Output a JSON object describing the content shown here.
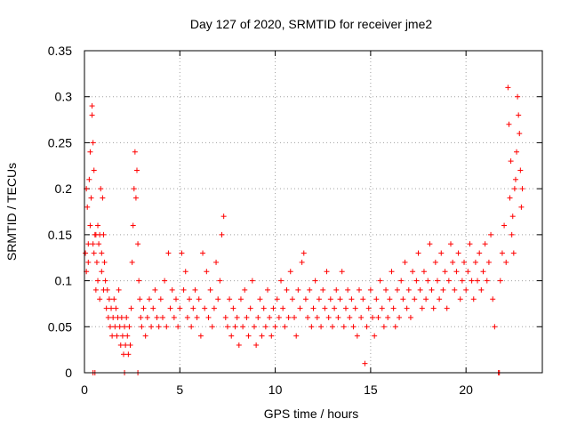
{
  "chart_data": {
    "type": "scatter",
    "title": "Day 127 of 2020, SRMTID for receiver jme2",
    "xlabel": "GPS time / hours",
    "ylabel": "SRMTID / TECUs",
    "xlim": [
      0,
      24
    ],
    "ylim": [
      0,
      0.35
    ],
    "x_ticks": [
      0,
      5,
      10,
      15,
      20
    ],
    "x_tick_labels": [
      "0",
      "5",
      "10",
      "15",
      "20"
    ],
    "y_ticks": [
      0,
      0.05,
      0.1,
      0.15,
      0.2,
      0.25,
      0.3,
      0.35
    ],
    "y_tick_labels": [
      "0",
      "0.05",
      "0.1",
      "0.15",
      "0.2",
      "0.25",
      "0.3",
      "0.35"
    ],
    "grid": true,
    "marker": "+",
    "series": [
      {
        "name": "SRMTID",
        "color": "#ff0000",
        "points": [
          [
            0.05,
            0.13
          ],
          [
            0.1,
            0.2
          ],
          [
            0.1,
            0.11
          ],
          [
            0.15,
            0.18
          ],
          [
            0.2,
            0.14
          ],
          [
            0.2,
            0.12
          ],
          [
            0.25,
            0.21
          ],
          [
            0.3,
            0.16
          ],
          [
            0.3,
            0.24
          ],
          [
            0.35,
            0.19
          ],
          [
            0.4,
            0.28
          ],
          [
            0.4,
            0.29
          ],
          [
            0.45,
            0.25
          ],
          [
            0.45,
            0.14
          ],
          [
            0.5,
            0.22
          ],
          [
            0.5,
            0.13
          ],
          [
            0.55,
            0.15
          ],
          [
            0.6,
            0.15
          ],
          [
            0.6,
            0.09
          ],
          [
            0.65,
            0.12
          ],
          [
            0.7,
            0.16
          ],
          [
            0.7,
            0.1
          ],
          [
            0.75,
            0.14
          ],
          [
            0.8,
            0.15
          ],
          [
            0.8,
            0.08
          ],
          [
            0.85,
            0.2
          ],
          [
            0.9,
            0.13
          ],
          [
            0.9,
            0.11
          ],
          [
            0.95,
            0.19
          ],
          [
            1.0,
            0.15
          ],
          [
            1.0,
            0.09
          ],
          [
            1.05,
            0.12
          ],
          [
            1.1,
            0.1
          ],
          [
            1.15,
            0.07
          ],
          [
            1.2,
            0.09
          ],
          [
            1.25,
            0.06
          ],
          [
            1.3,
            0.08
          ],
          [
            1.35,
            0.05
          ],
          [
            1.4,
            0.07
          ],
          [
            1.45,
            0.04
          ],
          [
            1.5,
            0.06
          ],
          [
            1.55,
            0.08
          ],
          [
            1.6,
            0.05
          ],
          [
            1.65,
            0.07
          ],
          [
            1.7,
            0.04
          ],
          [
            1.75,
            0.06
          ],
          [
            1.8,
            0.09
          ],
          [
            1.85,
            0.05
          ],
          [
            1.9,
            0.03
          ],
          [
            1.95,
            0.06
          ],
          [
            2.0,
            0.04
          ],
          [
            2.05,
            0.02
          ],
          [
            2.1,
            0.05
          ],
          [
            2.15,
            0.03
          ],
          [
            2.2,
            0.06
          ],
          [
            2.25,
            0.04
          ],
          [
            2.3,
            0.02
          ],
          [
            2.35,
            0.05
          ],
          [
            2.4,
            0.03
          ],
          [
            2.45,
            0.07
          ],
          [
            2.5,
            0.12
          ],
          [
            2.55,
            0.16
          ],
          [
            2.6,
            0.2
          ],
          [
            2.65,
            0.24
          ],
          [
            2.7,
            0.19
          ],
          [
            2.75,
            0.22
          ],
          [
            2.8,
            0.14
          ],
          [
            2.85,
            0.1
          ],
          [
            2.9,
            0.08
          ],
          [
            2.95,
            0.06
          ],
          [
            3.0,
            0.05
          ],
          [
            3.1,
            0.07
          ],
          [
            3.2,
            0.04
          ],
          [
            3.3,
            0.06
          ],
          [
            3.4,
            0.08
          ],
          [
            3.5,
            0.05
          ],
          [
            3.6,
            0.07
          ],
          [
            3.7,
            0.09
          ],
          [
            3.8,
            0.06
          ],
          [
            3.9,
            0.05
          ],
          [
            4.0,
            0.08
          ],
          [
            4.1,
            0.06
          ],
          [
            4.2,
            0.1
          ],
          [
            4.3,
            0.05
          ],
          [
            4.4,
            0.13
          ],
          [
            4.5,
            0.07
          ],
          [
            4.6,
            0.09
          ],
          [
            4.7,
            0.06
          ],
          [
            4.8,
            0.08
          ],
          [
            4.9,
            0.05
          ],
          [
            5.0,
            0.07
          ],
          [
            5.1,
            0.13
          ],
          [
            5.2,
            0.09
          ],
          [
            5.3,
            0.11
          ],
          [
            5.4,
            0.06
          ],
          [
            5.5,
            0.08
          ],
          [
            5.6,
            0.05
          ],
          [
            5.7,
            0.07
          ],
          [
            5.8,
            0.09
          ],
          [
            5.9,
            0.06
          ],
          [
            6.0,
            0.08
          ],
          [
            6.1,
            0.04
          ],
          [
            6.2,
            0.13
          ],
          [
            6.3,
            0.07
          ],
          [
            6.4,
            0.11
          ],
          [
            6.5,
            0.06
          ],
          [
            6.6,
            0.09
          ],
          [
            6.7,
            0.05
          ],
          [
            6.8,
            0.07
          ],
          [
            6.9,
            0.12
          ],
          [
            7.0,
            0.08
          ],
          [
            7.1,
            0.1
          ],
          [
            7.2,
            0.15
          ],
          [
            7.3,
            0.17
          ],
          [
            7.4,
            0.06
          ],
          [
            7.5,
            0.05
          ],
          [
            7.6,
            0.08
          ],
          [
            7.7,
            0.04
          ],
          [
            7.8,
            0.07
          ],
          [
            7.9,
            0.05
          ],
          [
            8.0,
            0.06
          ],
          [
            8.1,
            0.03
          ],
          [
            8.2,
            0.08
          ],
          [
            8.3,
            0.05
          ],
          [
            8.4,
            0.09
          ],
          [
            8.5,
            0.06
          ],
          [
            8.6,
            0.04
          ],
          [
            8.7,
            0.07
          ],
          [
            8.8,
            0.1
          ],
          [
            8.9,
            0.05
          ],
          [
            9.0,
            0.03
          ],
          [
            9.1,
            0.06
          ],
          [
            9.2,
            0.08
          ],
          [
            9.3,
            0.04
          ],
          [
            9.4,
            0.07
          ],
          [
            9.5,
            0.05
          ],
          [
            9.6,
            0.09
          ],
          [
            9.7,
            0.06
          ],
          [
            9.8,
            0.04
          ],
          [
            9.9,
            0.07
          ],
          [
            10.0,
            0.05
          ],
          [
            10.1,
            0.08
          ],
          [
            10.2,
            0.06
          ],
          [
            10.3,
            0.1
          ],
          [
            10.4,
            0.07
          ],
          [
            10.5,
            0.05
          ],
          [
            10.6,
            0.09
          ],
          [
            10.7,
            0.06
          ],
          [
            10.8,
            0.11
          ],
          [
            10.9,
            0.08
          ],
          [
            11.0,
            0.06
          ],
          [
            11.1,
            0.04
          ],
          [
            11.2,
            0.09
          ],
          [
            11.3,
            0.07
          ],
          [
            11.4,
            0.12
          ],
          [
            11.5,
            0.13
          ],
          [
            11.6,
            0.08
          ],
          [
            11.7,
            0.06
          ],
          [
            11.8,
            0.09
          ],
          [
            11.9,
            0.05
          ],
          [
            12.0,
            0.07
          ],
          [
            12.1,
            0.1
          ],
          [
            12.2,
            0.06
          ],
          [
            12.3,
            0.08
          ],
          [
            12.4,
            0.05
          ],
          [
            12.5,
            0.09
          ],
          [
            12.6,
            0.07
          ],
          [
            12.7,
            0.11
          ],
          [
            12.8,
            0.06
          ],
          [
            12.9,
            0.08
          ],
          [
            13.0,
            0.05
          ],
          [
            13.1,
            0.07
          ],
          [
            13.2,
            0.09
          ],
          [
            13.3,
            0.06
          ],
          [
            13.4,
            0.08
          ],
          [
            13.5,
            0.11
          ],
          [
            13.6,
            0.05
          ],
          [
            13.7,
            0.07
          ],
          [
            13.8,
            0.09
          ],
          [
            13.9,
            0.06
          ],
          [
            14.0,
            0.08
          ],
          [
            14.1,
            0.05
          ],
          [
            14.2,
            0.07
          ],
          [
            14.3,
            0.04
          ],
          [
            14.4,
            0.09
          ],
          [
            14.5,
            0.06
          ],
          [
            14.6,
            0.08
          ],
          [
            14.7,
            0.01
          ],
          [
            14.8,
            0.05
          ],
          [
            14.9,
            0.07
          ],
          [
            15.0,
            0.09
          ],
          [
            15.1,
            0.06
          ],
          [
            15.2,
            0.04
          ],
          [
            15.3,
            0.08
          ],
          [
            15.4,
            0.06
          ],
          [
            15.5,
            0.1
          ],
          [
            15.6,
            0.07
          ],
          [
            15.7,
            0.05
          ],
          [
            15.8,
            0.09
          ],
          [
            15.9,
            0.06
          ],
          [
            16.0,
            0.08
          ],
          [
            16.1,
            0.11
          ],
          [
            16.2,
            0.07
          ],
          [
            16.3,
            0.05
          ],
          [
            16.4,
            0.09
          ],
          [
            16.5,
            0.06
          ],
          [
            16.6,
            0.1
          ],
          [
            16.7,
            0.08
          ],
          [
            16.8,
            0.12
          ],
          [
            16.9,
            0.07
          ],
          [
            17.0,
            0.09
          ],
          [
            17.1,
            0.06
          ],
          [
            17.2,
            0.11
          ],
          [
            17.3,
            0.08
          ],
          [
            17.4,
            0.1
          ],
          [
            17.5,
            0.13
          ],
          [
            17.6,
            0.09
          ],
          [
            17.7,
            0.07
          ],
          [
            17.8,
            0.11
          ],
          [
            17.9,
            0.08
          ],
          [
            18.0,
            0.1
          ],
          [
            18.1,
            0.14
          ],
          [
            18.2,
            0.09
          ],
          [
            18.3,
            0.07
          ],
          [
            18.4,
            0.12
          ],
          [
            18.5,
            0.1
          ],
          [
            18.6,
            0.08
          ],
          [
            18.7,
            0.13
          ],
          [
            18.8,
            0.09
          ],
          [
            18.9,
            0.11
          ],
          [
            19.0,
            0.07
          ],
          [
            19.1,
            0.1
          ],
          [
            19.2,
            0.14
          ],
          [
            19.3,
            0.12
          ],
          [
            19.4,
            0.09
          ],
          [
            19.5,
            0.11
          ],
          [
            19.6,
            0.13
          ],
          [
            19.7,
            0.08
          ],
          [
            19.8,
            0.1
          ],
          [
            19.9,
            0.12
          ],
          [
            20.0,
            0.09
          ],
          [
            20.1,
            0.11
          ],
          [
            20.2,
            0.14
          ],
          [
            20.3,
            0.1
          ],
          [
            20.4,
            0.08
          ],
          [
            20.5,
            0.12
          ],
          [
            20.6,
            0.1
          ],
          [
            20.7,
            0.13
          ],
          [
            20.8,
            0.09
          ],
          [
            20.9,
            0.11
          ],
          [
            21.0,
            0.14
          ],
          [
            21.1,
            0.1
          ],
          [
            21.2,
            0.12
          ],
          [
            21.3,
            0.15
          ],
          [
            21.4,
            0.08
          ],
          [
            21.5,
            0.05
          ],
          [
            21.7,
            0.0
          ],
          [
            21.8,
            0.1
          ],
          [
            21.9,
            0.13
          ],
          [
            22.0,
            0.16
          ],
          [
            22.1,
            0.12
          ],
          [
            22.2,
            0.31
          ],
          [
            22.25,
            0.27
          ],
          [
            22.3,
            0.19
          ],
          [
            22.35,
            0.23
          ],
          [
            22.4,
            0.15
          ],
          [
            22.45,
            0.17
          ],
          [
            22.5,
            0.13
          ],
          [
            22.55,
            0.2
          ],
          [
            22.6,
            0.21
          ],
          [
            22.65,
            0.24
          ],
          [
            22.7,
            0.3
          ],
          [
            22.75,
            0.28
          ],
          [
            22.8,
            0.26
          ],
          [
            22.85,
            0.22
          ],
          [
            22.9,
            0.18
          ],
          [
            22.95,
            0.2
          ],
          [
            0.45,
            0.0
          ],
          [
            0.55,
            0.0
          ],
          [
            2.1,
            0.0
          ],
          [
            2.8,
            0.0
          ],
          [
            21.75,
            0.0
          ]
        ]
      }
    ]
  }
}
